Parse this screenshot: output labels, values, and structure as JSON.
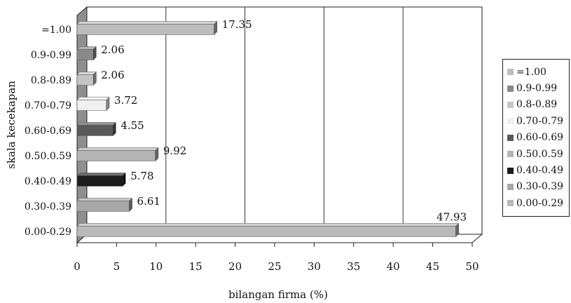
{
  "chart_data": {
    "type": "bar",
    "orientation": "horizontal",
    "style": "3d",
    "categories": [
      "0.00-0.29",
      "0.30-0.39",
      "0.40-0.49",
      "0.50.0.59",
      "0.60-0.69",
      "0.70-0.79",
      "0.8-0.89",
      "0.9-0.99",
      "=1.00"
    ],
    "values": [
      47.93,
      6.61,
      5.78,
      9.92,
      4.55,
      3.72,
      2.06,
      2.06,
      17.35
    ],
    "value_labels": [
      "47.93",
      "6.61",
      "5.78",
      "9.92",
      "4.55",
      "3.72",
      "2.06",
      "2.06",
      "17.35"
    ],
    "colors": [
      "#b9b9b9",
      "#a8a8a8",
      "#1c1c1c",
      "#b4b4b4",
      "#5a5a5a",
      "#f0f0f0",
      "#c4c4c4",
      "#8a8a8a",
      "#bdbdbd"
    ],
    "xlabel": "bilangan firma (%)",
    "ylabel": "skala kecekapan",
    "xlim": [
      0,
      50
    ],
    "xticks": [
      "0",
      "5",
      "10",
      "15",
      "20",
      "25",
      "30",
      "35",
      "40",
      "45",
      "50"
    ],
    "grid": "vertical lines at 10, 20, 30, 40",
    "legend": {
      "position": "right",
      "entries": [
        "=1.00",
        "0.9-0.99",
        "0.8-0.89",
        "0.70-0.79",
        "0.60-0.69",
        "0.50.0.59",
        "0.40-0.49",
        "0.30-0.39",
        "0.00-0.29"
      ],
      "colors": [
        "#bdbdbd",
        "#8a8a8a",
        "#c4c4c4",
        "#f0f0f0",
        "#5a5a5a",
        "#b4b4b4",
        "#1c1c1c",
        "#a8a8a8",
        "#b9b9b9"
      ]
    }
  }
}
